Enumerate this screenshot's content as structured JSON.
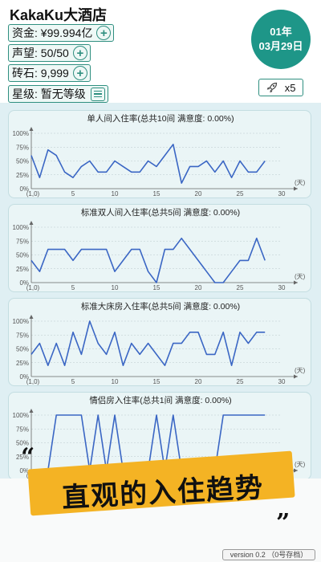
{
  "header": {
    "hotel_name": "KakaKu大酒店",
    "funds": "资金: ¥99.994亿",
    "reputation": "声望: 50/50",
    "bricks": "砖石: 9,999",
    "star_rating": "星级: 暂无等级",
    "date_year": "01年",
    "date_day": "03月29日",
    "speed": "x5"
  },
  "banner": {
    "quote_open": "“",
    "slogan": "直观的入住趋势",
    "quote_close": "”",
    "version": "version 0.2 （0号存档）"
  },
  "chart_data": [
    {
      "type": "line",
      "title": "单人间入住率(总共10间 满意度: 0.00%)",
      "x_unit": "(天)",
      "xlim": [
        0,
        30
      ],
      "ylim": [
        0,
        100
      ],
      "x_ticks": [
        "(1,0)",
        "5",
        "10",
        "15",
        "20",
        "25",
        "30"
      ],
      "y_ticks": [
        "0%",
        "25%",
        "50%",
        "75%",
        "100%"
      ],
      "x": [
        0,
        1,
        2,
        3,
        4,
        5,
        6,
        7,
        8,
        9,
        10,
        11,
        12,
        13,
        14,
        15,
        16,
        17,
        18,
        19,
        20,
        21,
        22,
        23,
        24,
        25,
        26,
        27,
        28
      ],
      "values": [
        60,
        20,
        70,
        60,
        30,
        20,
        40,
        50,
        30,
        30,
        50,
        40,
        30,
        30,
        50,
        40,
        60,
        80,
        10,
        40,
        40,
        50,
        30,
        50,
        20,
        50,
        30,
        30,
        50
      ],
      "color": "#3a66c4"
    },
    {
      "type": "line",
      "title": "标准双人间入住率(总共5间 满意度: 0.00%)",
      "x_unit": "(天)",
      "xlim": [
        0,
        30
      ],
      "ylim": [
        0,
        100
      ],
      "x_ticks": [
        "(1,0)",
        "5",
        "10",
        "15",
        "20",
        "25",
        "30"
      ],
      "y_ticks": [
        "0%",
        "25%",
        "50%",
        "75%",
        "100%"
      ],
      "x": [
        0,
        1,
        2,
        3,
        4,
        5,
        6,
        7,
        8,
        9,
        10,
        11,
        12,
        13,
        14,
        15,
        16,
        17,
        18,
        19,
        20,
        21,
        22,
        23,
        24,
        25,
        26,
        27,
        28
      ],
      "values": [
        40,
        20,
        60,
        60,
        60,
        40,
        60,
        60,
        60,
        60,
        20,
        40,
        60,
        60,
        20,
        0,
        60,
        60,
        80,
        60,
        40,
        20,
        0,
        0,
        20,
        40,
        40,
        80,
        40
      ],
      "color": "#3a66c4"
    },
    {
      "type": "line",
      "title": "标准大床房入住率(总共5间 满意度: 0.00%)",
      "x_unit": "(天)",
      "xlim": [
        0,
        30
      ],
      "ylim": [
        0,
        100
      ],
      "x_ticks": [
        "(1,0)",
        "5",
        "10",
        "15",
        "20",
        "25",
        "30"
      ],
      "y_ticks": [
        "0%",
        "25%",
        "50%",
        "75%",
        "100%"
      ],
      "x": [
        0,
        1,
        2,
        3,
        4,
        5,
        6,
        7,
        8,
        9,
        10,
        11,
        12,
        13,
        14,
        15,
        16,
        17,
        18,
        19,
        20,
        21,
        22,
        23,
        24,
        25,
        26,
        27,
        28
      ],
      "values": [
        40,
        60,
        20,
        60,
        20,
        80,
        40,
        100,
        60,
        40,
        80,
        20,
        60,
        40,
        60,
        40,
        20,
        60,
        60,
        80,
        80,
        40,
        40,
        80,
        20,
        80,
        60,
        80,
        80
      ],
      "color": "#3a66c4"
    },
    {
      "type": "line",
      "title": "情侣房入住率(总共1间 满意度: 0.00%)",
      "x_unit": "(天)",
      "xlim": [
        0,
        30
      ],
      "ylim": [
        0,
        100
      ],
      "x_ticks": [
        "(1,0)",
        "5",
        "10",
        "15",
        "20",
        "25",
        "30"
      ],
      "y_ticks": [
        "0%",
        "25%",
        "50%",
        "75%",
        "100%"
      ],
      "x": [
        0,
        1,
        2,
        3,
        4,
        5,
        6,
        7,
        8,
        9,
        10,
        11,
        12,
        13,
        14,
        15,
        16,
        17,
        18,
        19,
        20,
        21,
        22,
        23,
        24,
        25,
        26,
        27,
        28
      ],
      "values": [
        0,
        0,
        0,
        100,
        100,
        100,
        100,
        0,
        100,
        0,
        100,
        0,
        0,
        0,
        0,
        100,
        0,
        100,
        0,
        0,
        0,
        0,
        0,
        100,
        100,
        100,
        100,
        100,
        100
      ],
      "color": "#3a66c4"
    }
  ]
}
